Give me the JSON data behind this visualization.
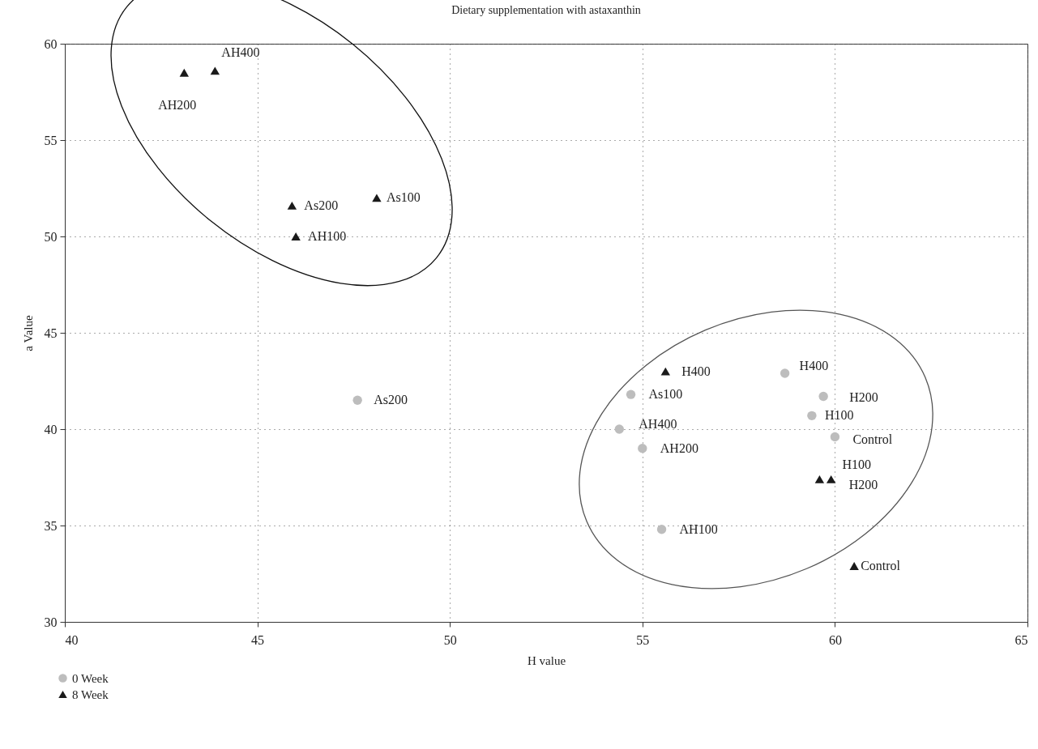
{
  "chart_data": {
    "type": "scatter",
    "title": "Dietary supplementation with astaxanthin",
    "xlabel": "H value",
    "ylabel": "a Value",
    "xlim": [
      40,
      65
    ],
    "xticks": [
      40,
      45,
      50,
      55,
      60,
      65
    ],
    "ylim": [
      30,
      60
    ],
    "yticks": [
      30,
      35,
      40,
      45,
      50,
      55,
      60
    ],
    "grid": true,
    "line_style": "dotted",
    "legend": "bottom left",
    "series": [
      {
        "name": "0 Week",
        "color": "#bdbdbd",
        "marker": "circle",
        "x": [
          47.6,
          54.7,
          58.7,
          59.7,
          59.4,
          60.0,
          54.4,
          55.0,
          55.5
        ],
        "values": [
          41.5,
          41.8,
          42.9,
          41.7,
          40.7,
          39.6,
          40.0,
          39.0,
          34.8
        ]
      },
      {
        "name": "8 Week",
        "color": "#1a1a1a",
        "marker": "triangle",
        "x": [
          43.1,
          43.9,
          45.9,
          46.0,
          48.1,
          55.6,
          59.6,
          59.9,
          60.5
        ],
        "values": [
          58.5,
          58.6,
          51.6,
          50.0,
          52.0,
          43.0,
          37.4,
          37.4,
          32.9
        ]
      }
    ],
    "annotations": [
      {
        "text": "As200",
        "x": 47.6,
        "y": 41.5
      },
      {
        "text": "As100",
        "x": 54.7,
        "y": 41.8
      },
      {
        "text": "H400",
        "x": 58.7,
        "y": 42.9
      },
      {
        "text": "H200",
        "x": 59.7,
        "y": 41.7
      },
      {
        "text": "H100",
        "x": 59.4,
        "y": 40.7
      },
      {
        "text": "Control",
        "x": 60.0,
        "y": 39.6
      },
      {
        "text": "AH400",
        "x": 54.4,
        "y": 40.0
      },
      {
        "text": "AH200",
        "x": 55.0,
        "y": 39.0
      },
      {
        "text": "AH100",
        "x": 55.5,
        "y": 34.8
      },
      {
        "text": "AH200",
        "x": 43.1,
        "y": 58.5
      },
      {
        "text": "AH400",
        "x": 43.9,
        "y": 58.6
      },
      {
        "text": "As200",
        "x": 45.9,
        "y": 51.6
      },
      {
        "text": "AH100",
        "x": 46.0,
        "y": 50.0
      },
      {
        "text": "As100",
        "x": 48.1,
        "y": 52.0
      },
      {
        "text": "H400",
        "x": 55.6,
        "y": 43.0
      },
      {
        "text": "H100",
        "x": 59.6,
        "y": 37.4
      },
      {
        "text": "H200",
        "x": 59.9,
        "y": 37.4
      },
      {
        "text": "Control",
        "x": 60.5,
        "y": 32.9
      }
    ]
  }
}
